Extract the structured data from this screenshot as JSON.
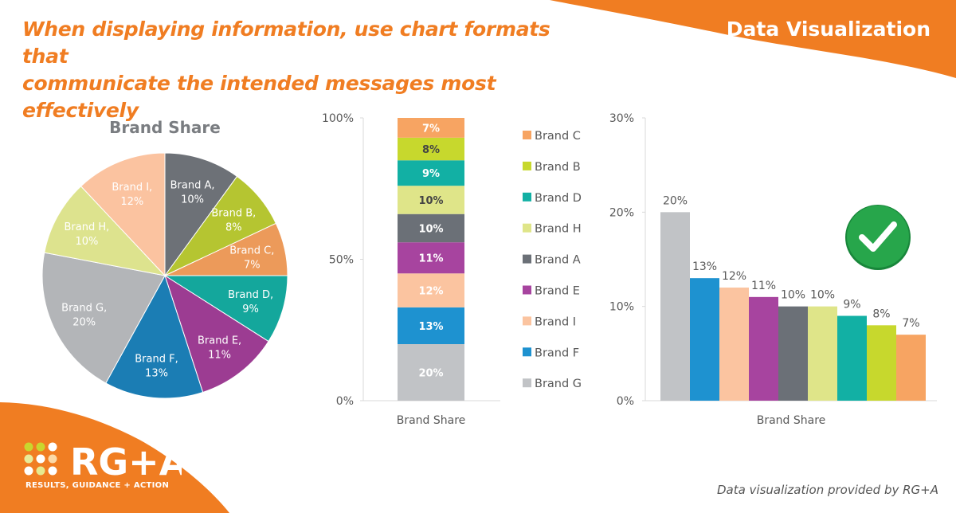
{
  "header": {
    "headline_line1": "When displaying information, use chart formats that",
    "headline_line2": "communicate the intended messages most effectively",
    "section_title": "Data Visualization"
  },
  "footer": {
    "credit": "Data visualization provided by RG+A",
    "logo_text": "RG+A",
    "logo_tagline": "RESULTS, GUIDANCE + ACTION"
  },
  "colors": {
    "brand_orange": "#f07d22",
    "check_green": "#22a34a"
  },
  "chart_data": [
    {
      "type": "pie",
      "title": "Brand Share",
      "slices": [
        {
          "label": "Brand A,",
          "pct_label": "10%",
          "value": 10,
          "color": "#6d7177"
        },
        {
          "label": "Brand B,",
          "pct_label": "8%",
          "value": 8,
          "color": "#b5c531"
        },
        {
          "label": "Brand C,",
          "pct_label": "7%",
          "value": 7,
          "color": "#ec9a5a"
        },
        {
          "label": "Brand D,",
          "pct_label": "9%",
          "value": 9,
          "color": "#14a79c"
        },
        {
          "label": "Brand E,",
          "pct_label": "11%",
          "value": 11,
          "color": "#9c3c92"
        },
        {
          "label": "Brand F,",
          "pct_label": "13%",
          "value": 13,
          "color": "#1b7db4"
        },
        {
          "label": "Brand G,",
          "pct_label": "20%",
          "value": 20,
          "color": "#b3b5b8"
        },
        {
          "label": "Brand H,",
          "pct_label": "10%",
          "value": 10,
          "color": "#dde38e"
        },
        {
          "label": "Brand I,",
          "pct_label": "12%",
          "value": 12,
          "color": "#fbc3a0"
        }
      ]
    },
    {
      "type": "bar",
      "stacked": true,
      "xlabel": "Brand Share",
      "category": "Brand Share",
      "ylim": [
        0,
        100
      ],
      "yticks": [
        "0%",
        "50%",
        "100%"
      ],
      "ytick_values": [
        0,
        50,
        100
      ],
      "series": [
        {
          "name": "Brand G",
          "value": 20,
          "label": "20%",
          "color": "#c1c3c6"
        },
        {
          "name": "Brand F",
          "value": 13,
          "label": "13%",
          "color": "#1e92d0"
        },
        {
          "name": "Brand I",
          "value": 12,
          "label": "12%",
          "color": "#fbc4a0"
        },
        {
          "name": "Brand E",
          "value": 11,
          "label": "11%",
          "color": "#a7449f"
        },
        {
          "name": "Brand A",
          "value": 10,
          "label": "10%",
          "color": "#6b7077"
        },
        {
          "name": "Brand H",
          "value": 10,
          "label": "10%",
          "color": "#dfe589"
        },
        {
          "name": "Brand D",
          "value": 9,
          "label": "9%",
          "color": "#12b0a4"
        },
        {
          "name": "Brand B",
          "value": 8,
          "label": "8%",
          "color": "#c7d82d"
        },
        {
          "name": "Brand C",
          "value": 7,
          "label": "7%",
          "color": "#f7a462"
        }
      ],
      "legend_order": [
        "Brand C",
        "Brand B",
        "Brand D",
        "Brand H",
        "Brand A",
        "Brand E",
        "Brand I",
        "Brand F",
        "Brand G"
      ],
      "legend": "right"
    },
    {
      "type": "bar",
      "xlabel": "Brand Share",
      "category": "Brand Share",
      "ylim": [
        0,
        30
      ],
      "yticks": [
        "0%",
        "10%",
        "20%",
        "30%"
      ],
      "ytick_values": [
        0,
        10,
        20,
        30
      ],
      "values": [
        20,
        13,
        12,
        11,
        10,
        10,
        9,
        8,
        7
      ],
      "labels": [
        "20%",
        "13%",
        "12%",
        "11%",
        "10%",
        "10%",
        "9%",
        "8%",
        "7%"
      ],
      "colors": [
        "#c1c3c6",
        "#1e92d0",
        "#fbc4a0",
        "#a7449f",
        "#6b7077",
        "#dfe589",
        "#12b0a4",
        "#c7d82d",
        "#f7a462"
      ],
      "annotation": "check-mark"
    }
  ]
}
